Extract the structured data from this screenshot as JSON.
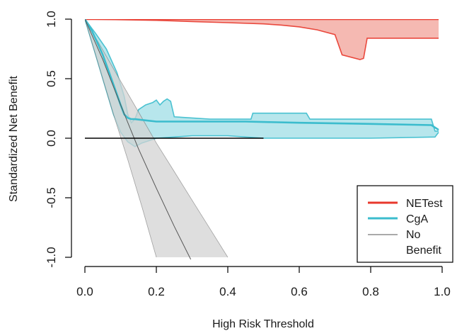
{
  "chart_data": {
    "type": "line",
    "title": "",
    "xlabel": "High Risk Threshold",
    "ylabel": "Standardized Net Benefit",
    "xlim": [
      0,
      1
    ],
    "ylim": [
      -1,
      1
    ],
    "x_ticks": [
      0,
      0.2,
      0.4,
      0.6,
      0.8,
      1
    ],
    "x_tick_labels": [
      "0.0",
      "0.2",
      "0.4",
      "0.6",
      "0.8",
      "1.0"
    ],
    "y_ticks": [
      -1,
      -0.5,
      0,
      0.5,
      1
    ],
    "y_tick_labels": [
      "-1.0",
      "-0.5",
      "0.0",
      "0.5",
      "1.0"
    ],
    "grid": false,
    "legend_position": "bottom-right",
    "series": [
      {
        "name": "NETest",
        "color": "#e8382c",
        "band_color": "#f2a198",
        "line": {
          "x": [
            0,
            0.1,
            0.2,
            0.3,
            0.4,
            0.5,
            0.6,
            0.7,
            0.8,
            0.9,
            0.99
          ],
          "y": [
            1,
            1,
            1,
            1,
            1,
            1,
            1,
            1,
            1,
            1,
            1
          ]
        },
        "upper": {
          "x": [
            0,
            0.5,
            0.99
          ],
          "y": [
            1,
            1,
            1
          ]
        },
        "lower": {
          "x": [
            0,
            0.1,
            0.2,
            0.3,
            0.4,
            0.5,
            0.55,
            0.6,
            0.65,
            0.7,
            0.72,
            0.77,
            0.78,
            0.79,
            0.85,
            0.99
          ],
          "y": [
            1,
            0.995,
            0.99,
            0.98,
            0.97,
            0.96,
            0.95,
            0.935,
            0.91,
            0.87,
            0.7,
            0.66,
            0.67,
            0.84,
            0.84,
            0.84
          ]
        }
      },
      {
        "name": "CgA",
        "color": "#3bbccd",
        "band_color": "#9fdde5",
        "line": {
          "x": [
            0,
            0.02,
            0.05,
            0.08,
            0.1,
            0.11,
            0.12,
            0.13,
            0.14,
            0.17,
            0.2,
            0.22,
            0.3,
            0.45,
            0.6,
            0.8,
            0.97,
            0.99
          ],
          "y": [
            1,
            0.9,
            0.7,
            0.45,
            0.28,
            0.2,
            0.17,
            0.16,
            0.16,
            0.15,
            0.14,
            0.14,
            0.14,
            0.14,
            0.13,
            0.12,
            0.11,
            0.07
          ]
        },
        "upper": {
          "x": [
            0,
            0.03,
            0.06,
            0.09,
            0.11,
            0.12,
            0.13,
            0.14,
            0.15,
            0.17,
            0.19,
            0.2,
            0.21,
            0.22,
            0.23,
            0.24,
            0.25,
            0.3,
            0.35,
            0.4,
            0.465,
            0.47,
            0.6,
            0.62,
            0.63,
            0.7,
            0.8,
            0.95,
            0.97,
            0.98,
            0.99
          ],
          "y": [
            1,
            0.88,
            0.75,
            0.55,
            0.35,
            0.2,
            0.13,
            0.16,
            0.24,
            0.28,
            0.3,
            0.32,
            0.28,
            0.31,
            0.33,
            0.31,
            0.18,
            0.17,
            0.16,
            0.16,
            0.16,
            0.21,
            0.21,
            0.21,
            0.16,
            0.16,
            0.16,
            0.16,
            0.16,
            0.06,
            0.06
          ]
        },
        "lower": {
          "x": [
            0,
            0.03,
            0.06,
            0.08,
            0.1,
            0.12,
            0.14,
            0.16,
            0.2,
            0.25,
            0.3,
            0.4,
            0.5,
            0.6,
            0.8,
            0.98,
            0.99
          ],
          "y": [
            1,
            0.7,
            0.4,
            0.2,
            0.05,
            -0.03,
            -0.07,
            -0.04,
            0,
            0.01,
            0.02,
            0.02,
            0,
            0,
            0,
            0.01,
            0.05
          ]
        }
      },
      {
        "name": "No Benefit",
        "color": "#555555",
        "band_color": "#d3d3d3",
        "line": {
          "x": [
            0,
            0.05,
            0.1,
            0.15,
            0.2,
            0.25,
            0.3
          ],
          "y": [
            1,
            0.66,
            0.28,
            -0.09,
            -0.42,
            -0.74,
            -1.04
          ]
        },
        "upper": {
          "x": [
            0,
            0.05,
            0.1,
            0.15,
            0.2,
            0.25,
            0.3,
            0.35,
            0.4
          ],
          "y": [
            1,
            0.74,
            0.48,
            0.22,
            -0.04,
            -0.28,
            -0.52,
            -0.76,
            -1
          ]
        },
        "lower": {
          "x": [
            0,
            0.04,
            0.08,
            0.12,
            0.16,
            0.2
          ],
          "y": [
            1,
            0.6,
            0.2,
            -0.18,
            -0.58,
            -1
          ]
        }
      }
    ],
    "reference_line": {
      "x": [
        0,
        0.5
      ],
      "y": [
        0,
        0
      ],
      "color": "#000000"
    },
    "legend": {
      "entries": [
        {
          "label": "NETest",
          "color": "#e8382c"
        },
        {
          "label": "CgA",
          "color": "#3bbccd"
        },
        {
          "label": "No",
          "label_line2": "Benefit",
          "color": "#555555"
        }
      ]
    }
  }
}
